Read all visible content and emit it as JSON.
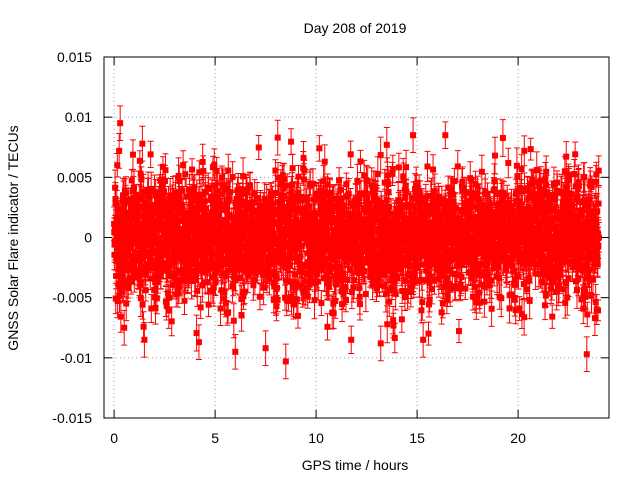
{
  "chart_data": {
    "type": "scatter",
    "title": "Day 208 of 2019",
    "xlabel": "GPS time / hours",
    "ylabel": "GNSS Solar Flare indicator / TECUs",
    "xlim": [
      -0.5,
      24.5
    ],
    "ylim": [
      -0.015,
      0.015
    ],
    "x_ticks": [
      0,
      5,
      10,
      15,
      20
    ],
    "x_tick_labels": [
      "0",
      "5",
      "10",
      "15",
      "20"
    ],
    "y_ticks": [
      -0.015,
      -0.01,
      -0.005,
      0,
      0.005,
      0.01,
      0.015
    ],
    "y_tick_labels": [
      "-0.015",
      "-0.01",
      "-0.005",
      "0",
      "0.005",
      "0.01",
      "0.015"
    ],
    "grid": true,
    "series": [
      {
        "name": "solar flare indicator",
        "color": "#ff0000",
        "marker": "square",
        "error_bars": true,
        "x_range": [
          0,
          24
        ],
        "typical_spread": 0.0045,
        "typical_error": 0.0012,
        "notable_points": [
          {
            "x": 0.3,
            "y": 0.0095
          },
          {
            "x": 0.25,
            "y": 0.0072
          },
          {
            "x": 0.5,
            "y": -0.0075
          },
          {
            "x": 1.4,
            "y": 0.0078
          },
          {
            "x": 1.5,
            "y": -0.0085
          },
          {
            "x": 4.2,
            "y": -0.0087
          },
          {
            "x": 6.0,
            "y": -0.0095
          },
          {
            "x": 7.5,
            "y": -0.0092
          },
          {
            "x": 8.1,
            "y": 0.0083
          },
          {
            "x": 8.5,
            "y": -0.0103
          },
          {
            "x": 13.2,
            "y": -0.0088
          },
          {
            "x": 13.5,
            "y": 0.0077
          },
          {
            "x": 14.8,
            "y": 0.0085
          },
          {
            "x": 15.3,
            "y": -0.0085
          },
          {
            "x": 23.4,
            "y": -0.0097
          },
          {
            "x": 23.8,
            "y": -0.0067
          }
        ]
      }
    ]
  }
}
